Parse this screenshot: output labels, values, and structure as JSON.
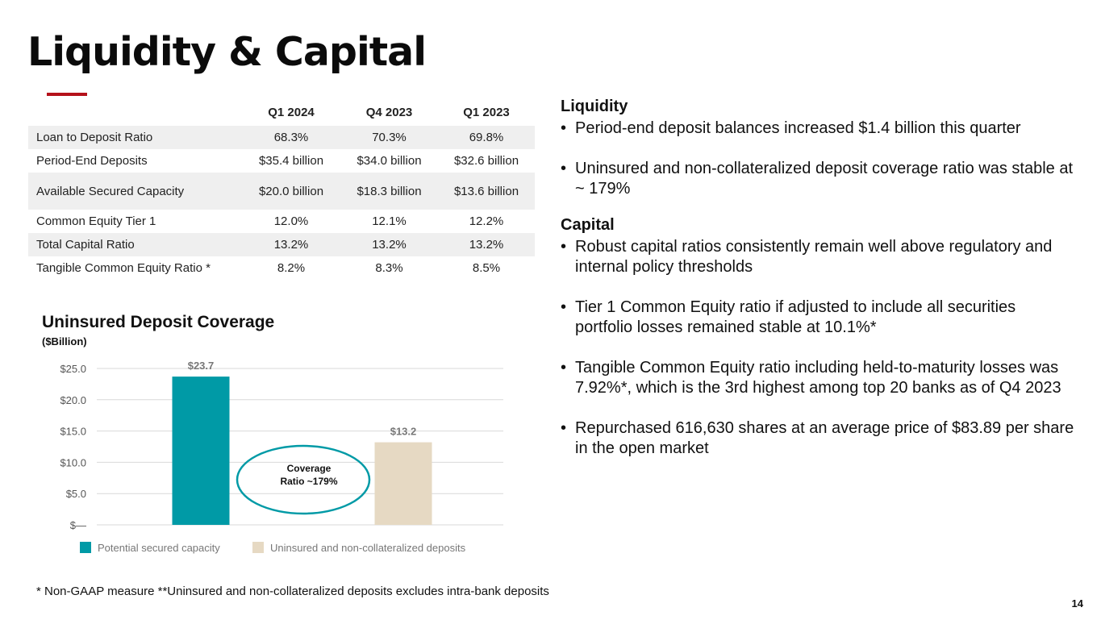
{
  "title": "Liquidity & Capital",
  "table": {
    "headers": [
      "",
      "Q1 2024",
      "Q4 2023",
      "Q1 2023"
    ],
    "rows": [
      {
        "label": "Loan to Deposit Ratio",
        "values": [
          "68.3%",
          "70.3%",
          "69.8%"
        ]
      },
      {
        "label": "Period-End Deposits",
        "values": [
          "$35.4 billion",
          "$34.0 billion",
          "$32.6 billion"
        ]
      },
      {
        "label": "Available Secured Capacity",
        "values": [
          "$20.0 billion",
          "$18.3 billion",
          "$13.6 billion"
        ]
      },
      {
        "label": "Common Equity Tier 1",
        "values": [
          "12.0%",
          "12.1%",
          "12.2%"
        ]
      },
      {
        "label": "Total Capital Ratio",
        "values": [
          "13.2%",
          "13.2%",
          "13.2%"
        ]
      },
      {
        "label": "Tangible Common Equity Ratio *",
        "values": [
          "8.2%",
          "8.3%",
          "8.5%"
        ]
      }
    ]
  },
  "chart_data": {
    "type": "bar",
    "title": "Uninsured Deposit Coverage",
    "subtitle": "($Billion)",
    "categories": [
      "Potential secured capacity",
      "Uninsured and non-collateralized deposits"
    ],
    "values": [
      23.7,
      13.2
    ],
    "value_labels": [
      "$23.7",
      "$13.2"
    ],
    "colors": [
      "#009aa6",
      "#e6d9c3"
    ],
    "ylim": [
      0,
      25
    ],
    "yticks": [
      0,
      5,
      10,
      15,
      20,
      25
    ],
    "ytick_labels": [
      "$—",
      "$5.0",
      "$10.0",
      "$15.0",
      "$20.0",
      "$25.0"
    ],
    "grid": true,
    "legend": "bottom",
    "annotation": [
      "Coverage",
      "Ratio ~179%"
    ]
  },
  "right": {
    "liquidity_heading": "Liquidity",
    "liquidity_bullets": [
      "Period-end deposit balances increased $1.4 billion this quarter",
      "Uninsured and non-collateralized deposit coverage ratio was stable at ~ 179%"
    ],
    "capital_heading": "Capital",
    "capital_bullets": [
      "Robust capital ratios consistently remain well above regulatory and internal policy thresholds",
      "Tier 1 Common Equity ratio if adjusted to include all securities portfolio losses remained stable at 10.1%*",
      "Tangible Common Equity ratio including held-to-maturity losses was 7.92%*, which is the 3rd highest among top 20 banks as of Q4 2023",
      "Repurchased 616,630 shares at an average price of $83.89 per share in the open market"
    ]
  },
  "footnote": "*   Non-GAAP measure  **Uninsured and non-collateralized deposits excludes intra-bank deposits",
  "page_number": "14",
  "colors": {
    "accent": "#b5121b",
    "teal": "#009aa6",
    "tan": "#e6d9c3",
    "row_shade": "#efefef"
  }
}
